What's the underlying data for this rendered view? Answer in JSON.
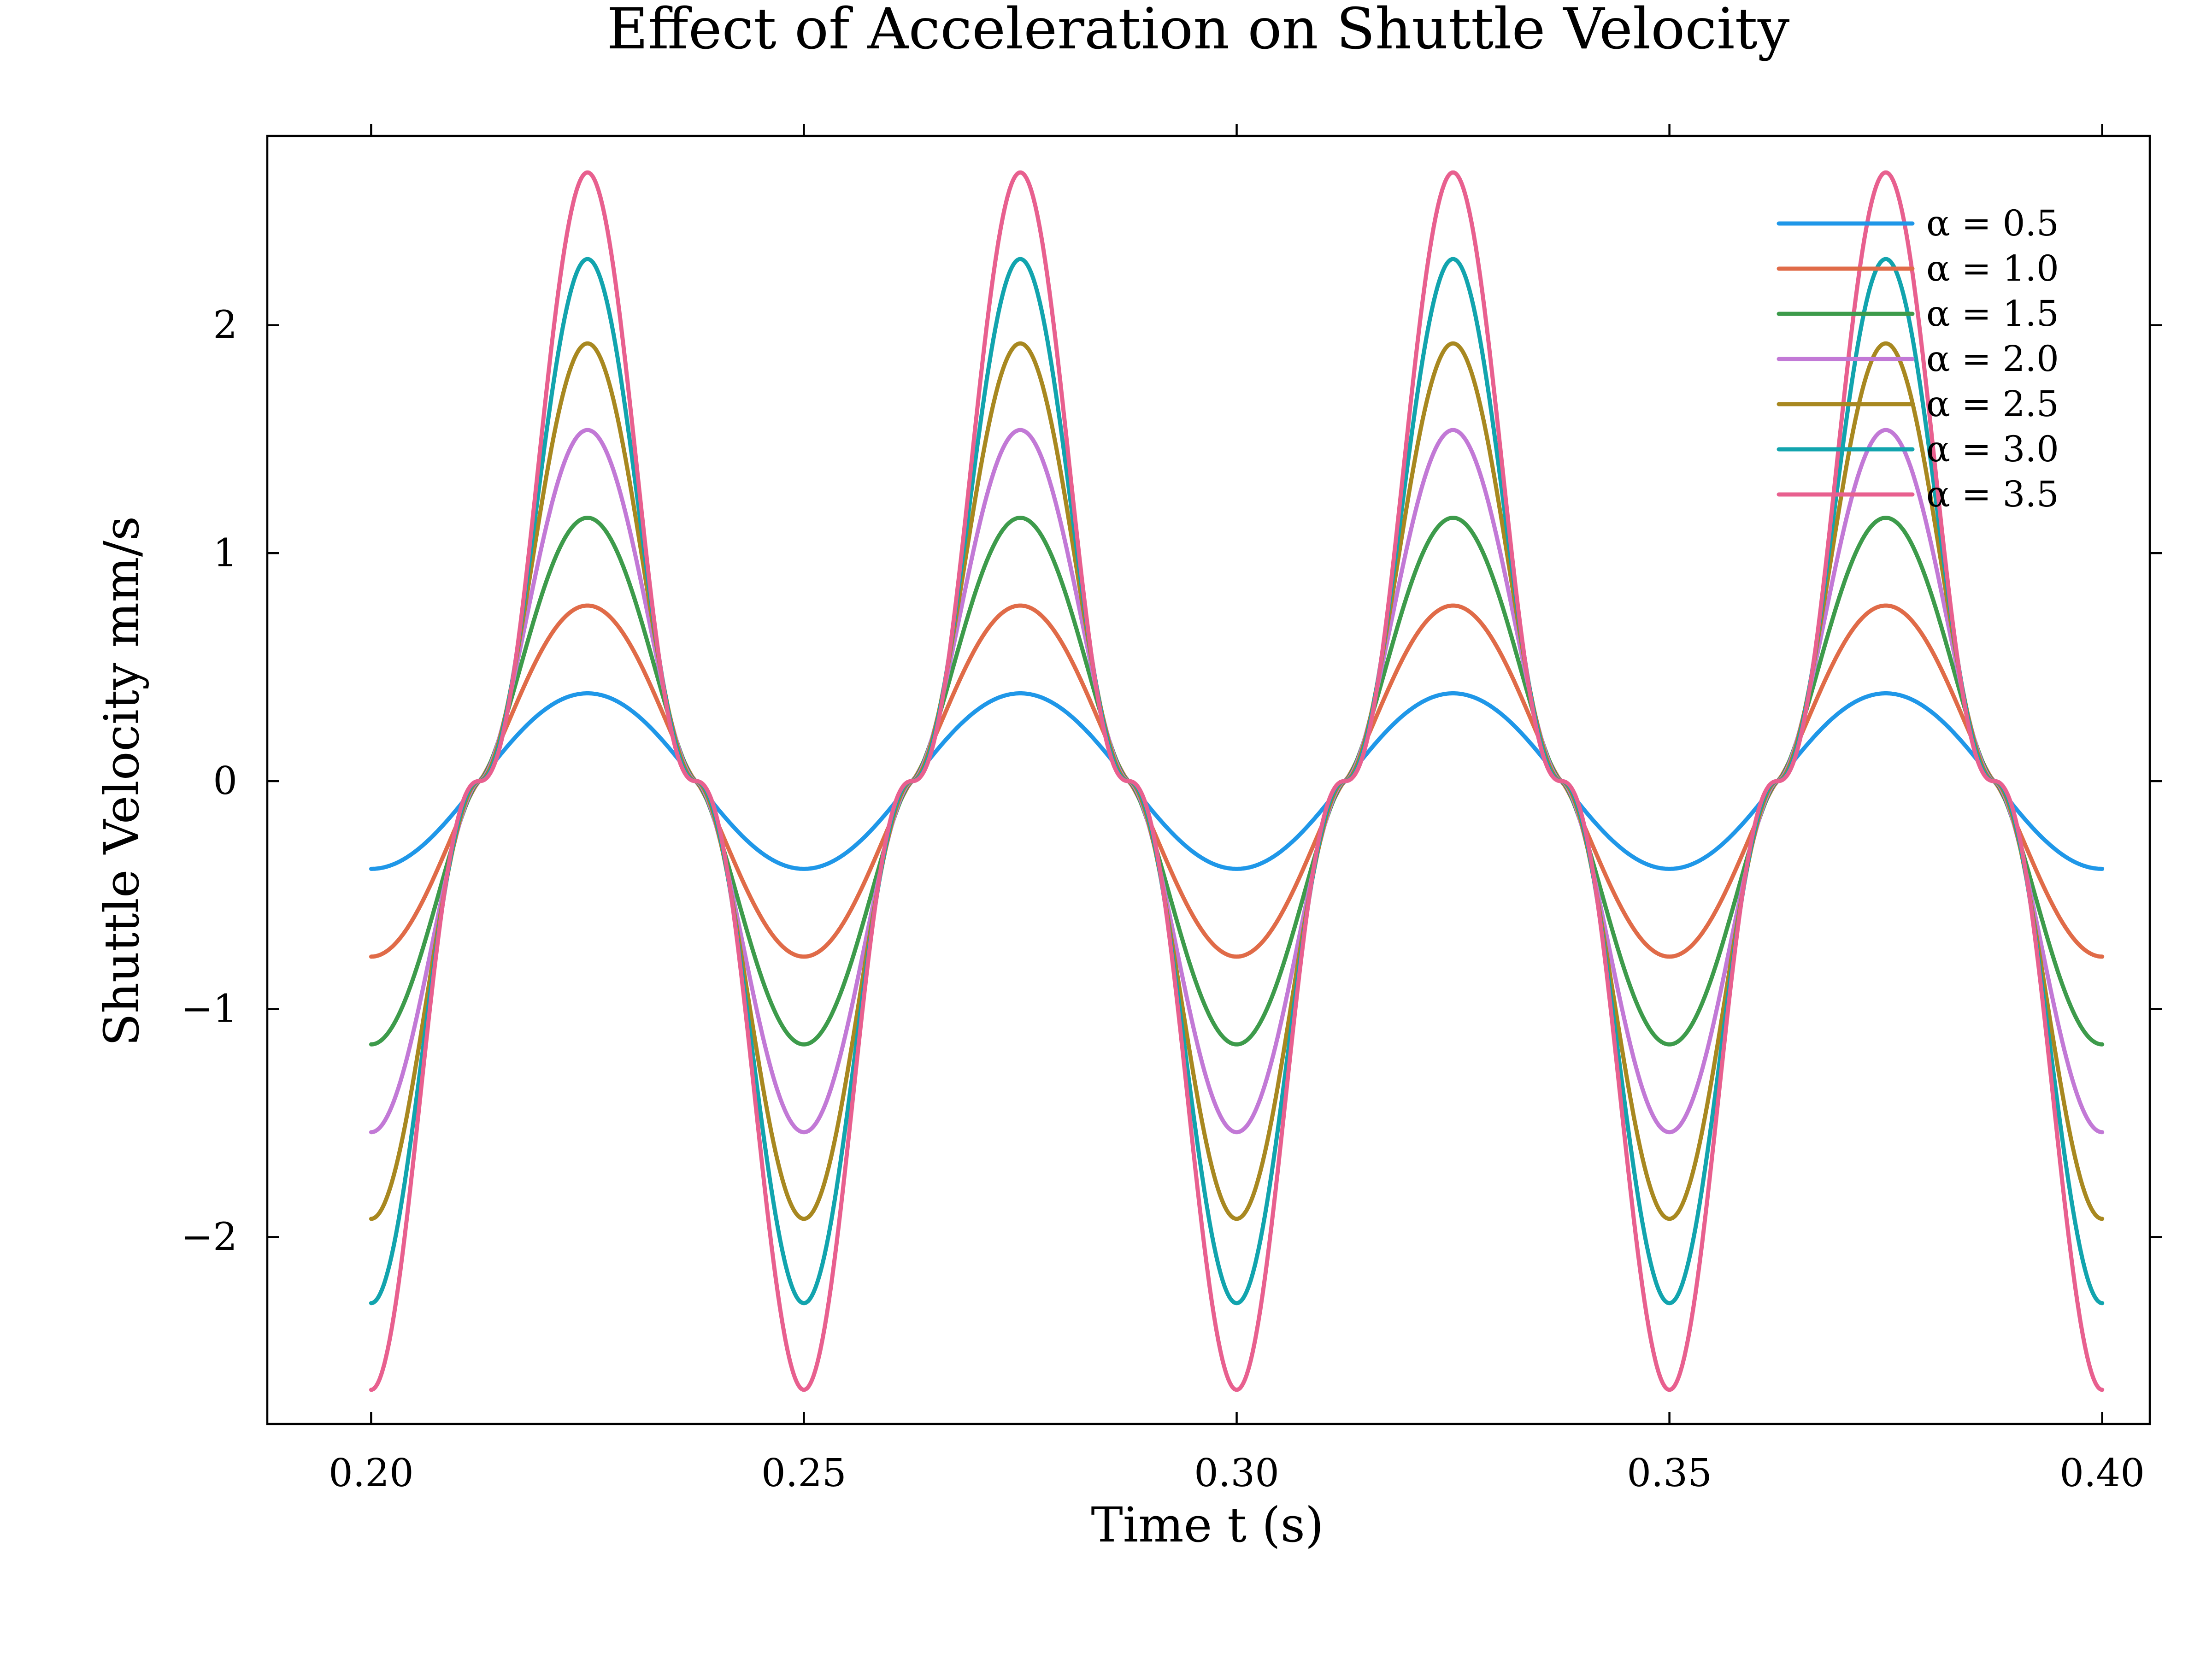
{
  "chart_data": {
    "type": "line",
    "title": "Effect of Acceleration on Shuttle Velocity",
    "xlabel": "Time t (s)",
    "ylabel": "Shuttle Velocity mm/s",
    "xlim": [
      0.188,
      0.4055
    ],
    "ylim": [
      -2.82,
      2.83
    ],
    "xticks": [
      0.2,
      0.25,
      0.3,
      0.35,
      0.4
    ],
    "xtick_labels": [
      "0.20",
      "0.25",
      "0.30",
      "0.35",
      "0.40"
    ],
    "yticks": [
      -2,
      -1,
      0,
      1,
      2
    ],
    "ytick_labels": [
      "−2",
      "−1",
      "0",
      "1",
      "2"
    ],
    "x_range": [
      0.2,
      0.4
    ],
    "period": 0.05,
    "grid": false,
    "legend_position": "top-right",
    "series": [
      {
        "name": "α = 0.5",
        "alpha": 0.5,
        "amplitude": 0.385,
        "color": "#1f97e8"
      },
      {
        "name": "α = 1.0",
        "alpha": 1.0,
        "amplitude": 0.77,
        "color": "#e06b48"
      },
      {
        "name": "α = 1.5",
        "alpha": 1.5,
        "amplitude": 1.155,
        "color": "#3d9b4b"
      },
      {
        "name": "α = 2.0",
        "alpha": 2.0,
        "amplitude": 1.54,
        "color": "#c279d6"
      },
      {
        "name": "α = 2.5",
        "alpha": 2.5,
        "amplitude": 1.92,
        "color": "#a88820"
      },
      {
        "name": "α = 3.0",
        "alpha": 3.0,
        "amplitude": 2.29,
        "color": "#12a4ae"
      },
      {
        "name": "α = 3.5",
        "alpha": 3.5,
        "amplitude": 2.67,
        "color": "#e8608f"
      }
    ]
  }
}
